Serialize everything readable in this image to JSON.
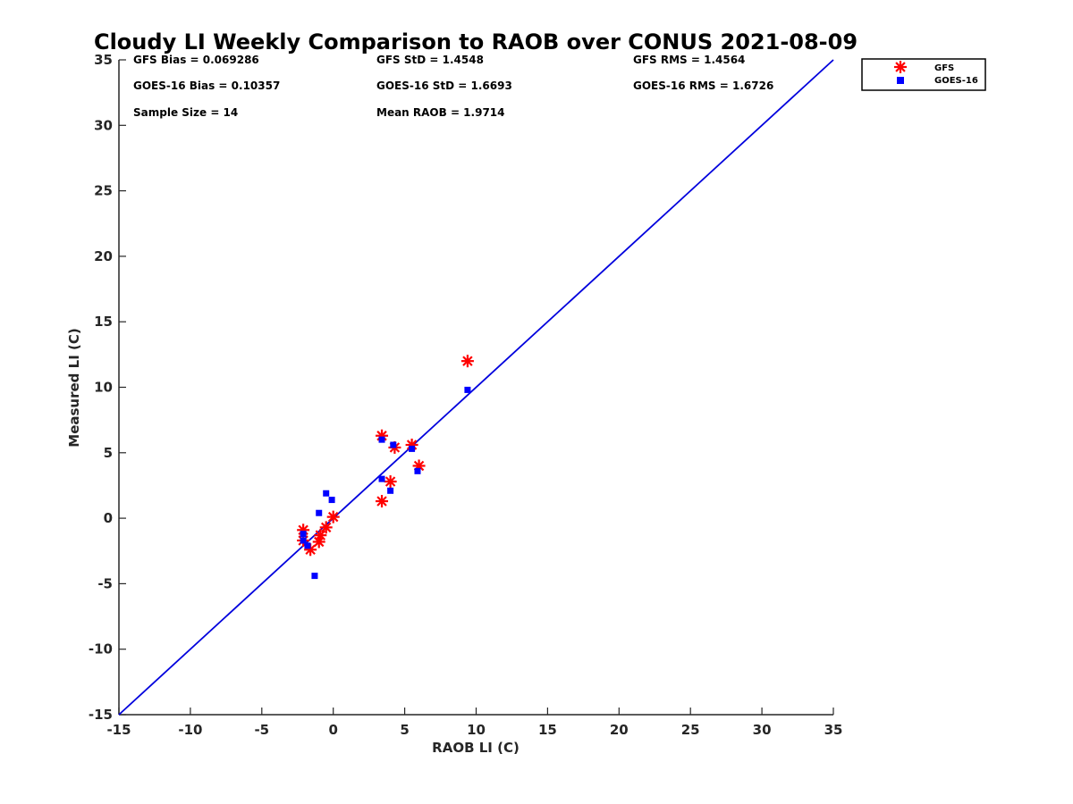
{
  "chart_data": {
    "type": "scatter",
    "title": "Cloudy LI Weekly Comparison to RAOB over CONUS 2021-08-09",
    "xlabel": "RAOB LI (C)",
    "ylabel": "Measured LI (C)",
    "xlim": [
      -15,
      35
    ],
    "ylim": [
      -15,
      35
    ],
    "xticks": [
      "-15",
      "-10",
      "-5",
      "0",
      "5",
      "10",
      "15",
      "20",
      "25",
      "30",
      "35"
    ],
    "yticks": [
      "35",
      "30",
      "25",
      "20",
      "15",
      "10",
      "5",
      "0",
      "-5",
      "-10",
      "-15"
    ],
    "grid": false,
    "legend_position": "top-right outside",
    "reference_line": {
      "from": [
        -15,
        -15
      ],
      "to": [
        35,
        35
      ],
      "color": "#0000dd"
    },
    "stats": [
      "GFS Bias = 0.069286",
      "GFS StD = 1.4548",
      "GFS RMS = 1.4564",
      "GOES-16 Bias = 0.10357",
      "GOES-16 StD = 1.6693",
      "GOES-16 RMS = 1.6726",
      "Sample Size = 14",
      "Mean RAOB = 1.9714"
    ],
    "series": [
      {
        "name": "GFS",
        "marker": "asterisk",
        "color": "#ff0000",
        "points": [
          [
            -2.1,
            -0.9
          ],
          [
            -2.1,
            -1.7
          ],
          [
            -1.6,
            -2.4
          ],
          [
            -1.0,
            -1.8
          ],
          [
            -0.9,
            -1.3
          ],
          [
            -0.5,
            -0.7
          ],
          [
            0.0,
            0.1
          ],
          [
            3.4,
            6.3
          ],
          [
            3.4,
            1.3
          ],
          [
            4.0,
            2.8
          ],
          [
            4.3,
            5.4
          ],
          [
            5.5,
            5.6
          ],
          [
            6.0,
            4.0
          ],
          [
            9.4,
            12.0
          ]
        ]
      },
      {
        "name": "GOES-16",
        "marker": "square",
        "color": "#0000ff",
        "points": [
          [
            -2.1,
            -1.2
          ],
          [
            -2.1,
            -1.7
          ],
          [
            -1.8,
            -2.1
          ],
          [
            -1.3,
            -4.4
          ],
          [
            -1.0,
            0.4
          ],
          [
            -0.5,
            1.9
          ],
          [
            -0.1,
            1.4
          ],
          [
            3.4,
            6.0
          ],
          [
            3.4,
            3.0
          ],
          [
            4.0,
            2.1
          ],
          [
            4.2,
            5.6
          ],
          [
            5.5,
            5.3
          ],
          [
            5.9,
            3.6
          ],
          [
            9.4,
            9.8
          ]
        ]
      }
    ]
  }
}
